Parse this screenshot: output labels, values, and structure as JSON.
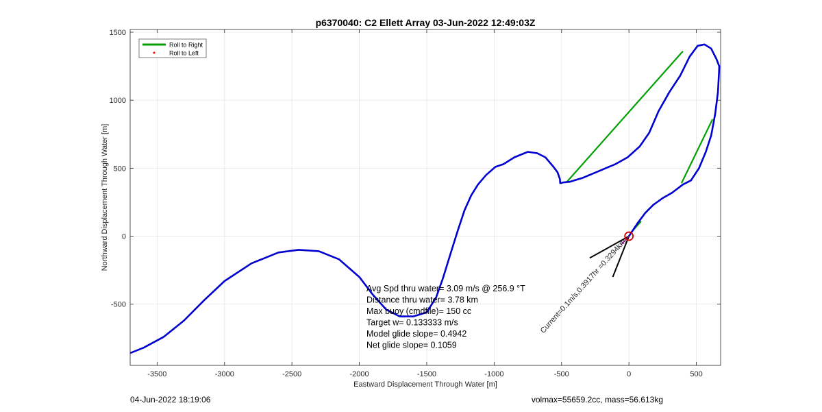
{
  "chart_data": {
    "type": "line",
    "title": "p6370040: C2 Ellett Array 03-Jun-2022 12:49:03Z",
    "xlabel": "Eastward Displacement Through Water [m]",
    "ylabel": "Northward Displacement Through Water [m]",
    "xlim": [
      -3700,
      680
    ],
    "ylim": [
      -950,
      1520
    ],
    "xticks": [
      -3500,
      -3000,
      -2500,
      -2000,
      -1500,
      -1000,
      -500,
      0,
      500
    ],
    "yticks": [
      -500,
      0,
      500,
      1000,
      1500
    ],
    "grid": true,
    "legend_position": "top-left",
    "legend": [
      {
        "label": "Roll to Right",
        "style": "line",
        "color": "#00a000"
      },
      {
        "label": "Roll to Left",
        "style": "dot",
        "color": "#ff0000"
      }
    ],
    "series": [
      {
        "color": "#0000d0",
        "x": [
          -3700,
          -3600,
          -3450,
          -3300,
          -3150,
          -3000,
          -2800,
          -2600,
          -2450,
          -2300,
          -2150,
          -2000,
          -1900,
          -1800,
          -1700,
          -1600,
          -1500,
          -1430,
          -1380,
          -1330,
          -1270,
          -1220,
          -1170,
          -1120,
          -1060,
          -990,
          -930,
          -850,
          -750,
          -680,
          -620,
          -560,
          -530,
          -512,
          -510,
          -490,
          -440,
          -340,
          -220,
          -100,
          -10,
          80,
          150,
          220,
          300,
          380,
          450,
          510,
          560,
          610,
          650,
          670,
          668,
          660,
          640,
          610,
          570,
          520,
          460,
          400,
          320,
          250,
          180,
          120,
          60,
          0
        ],
        "y": [
          -860,
          -820,
          -740,
          -620,
          -470,
          -330,
          -200,
          -120,
          -100,
          -110,
          -170,
          -300,
          -430,
          -540,
          -590,
          -590,
          -560,
          -450,
          -310,
          -150,
          40,
          190,
          300,
          380,
          450,
          510,
          530,
          580,
          620,
          610,
          580,
          510,
          470,
          420,
          390,
          395,
          400,
          430,
          480,
          530,
          580,
          660,
          760,
          920,
          1060,
          1180,
          1320,
          1400,
          1410,
          1380,
          1300,
          1250,
          1200,
          1060,
          900,
          740,
          620,
          500,
          410,
          380,
          320,
          280,
          230,
          170,
          90,
          0
        ]
      }
    ],
    "green_segments": [
      {
        "x": [
          -460,
          400
        ],
        "y": [
          400,
          1360
        ]
      },
      {
        "x": [
          390,
          620
        ],
        "y": [
          390,
          860
        ]
      },
      {
        "x": [
          10,
          90
        ],
        "y": [
          20,
          110
        ]
      }
    ],
    "annotations": [
      "Avg Spd thru water=  3.09 m/s @ 256.9 °T",
      "Distance thru water=  3.78 km",
      "Max buoy (cmdfile)= 150 cc",
      "Target w= 0.133333 m/s",
      "Model glide slope= 0.4942",
      "Net glide slope= 0.1059"
    ],
    "current_label": "Current=0.1m/s,0.3917hr =0.3294km"
  },
  "footer": {
    "left": "04-Jun-2022 18:19:06",
    "right": "volmax=55659.2cc, mass=56.613kg"
  }
}
